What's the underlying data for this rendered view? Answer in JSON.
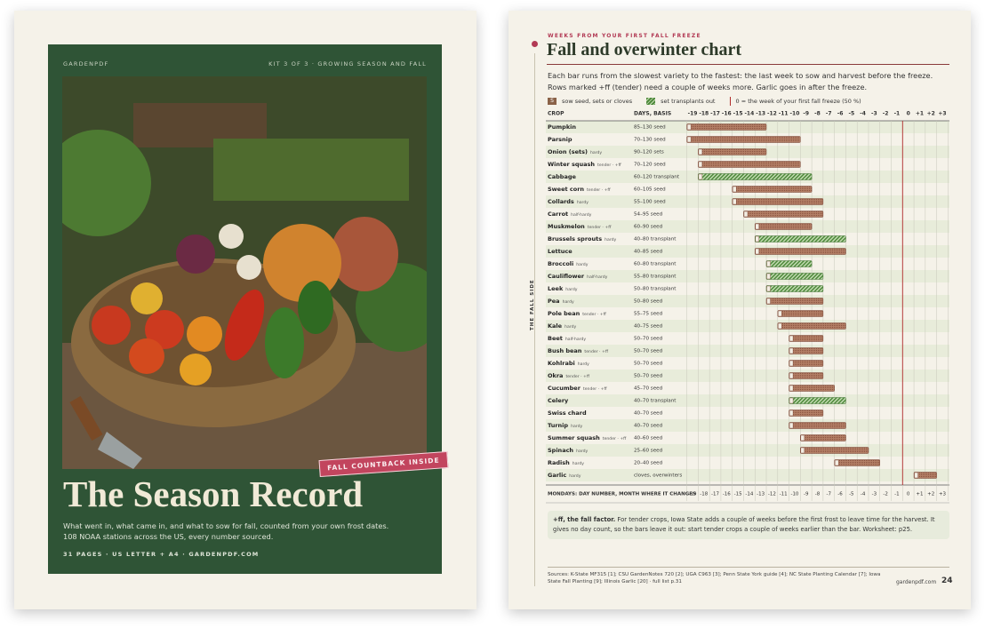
{
  "cover": {
    "brand": "GARDENPDF",
    "kit": "KIT 3 OF 3 · GROWING SEASON AND FALL",
    "badge": "FALL COUNTBACK INSIDE",
    "title": "The Season Record",
    "description": "What went in, what came in, and what to sow for fall, counted from your own frost dates. 108 NOAA stations across the US, every number sourced.",
    "footer": "31 PAGES · US LETTER + A4 · GARDENPDF.COM"
  },
  "page": {
    "kicker": "WEEKS FROM YOUR FIRST FALL FREEZE",
    "title": "Fall and overwinter chart",
    "intro": [
      "Each bar runs from the slowest variety to the fastest: the last week to sow and harvest before the freeze.",
      "Rows marked +ff (tender) need a couple of weeks more. Garlic goes in after the freeze."
    ],
    "legend": [
      {
        "symbol": "S",
        "label": "sow seed, sets or cloves"
      },
      {
        "label": "set transplants out"
      },
      {
        "label": "0 = the week of your first fall freeze (50 %)"
      }
    ],
    "side_label": "THE FALL SIDE",
    "columns": {
      "crop": "CROP",
      "days": "DAYS, BASIS"
    },
    "weeks": [
      -19,
      -18,
      -17,
      -16,
      -15,
      -14,
      -13,
      -12,
      -11,
      -10,
      -9,
      -8,
      -7,
      -6,
      -5,
      -4,
      -3,
      -2,
      -1,
      0,
      {
        "value": 1,
        "label": "+1"
      },
      {
        "value": 2,
        "label": "+2"
      },
      {
        "value": 3,
        "label": "+3"
      }
    ],
    "rows": [
      {
        "crop": "Pumpkin",
        "days": "85–130 seed",
        "bar": [
          -19,
          -13
        ],
        "style": "sow"
      },
      {
        "crop": "Parsnip",
        "days": "70–130 seed",
        "bar": [
          -19,
          -10
        ],
        "style": "sow"
      },
      {
        "crop": "Onion (sets)",
        "tag": "hardy",
        "days": "90–120 sets",
        "bar": [
          -18,
          -13
        ],
        "style": "sow"
      },
      {
        "crop": "Winter squash",
        "tag": "tender · +ff",
        "days": "70–120 seed",
        "bar": [
          -18,
          -10
        ],
        "style": "sow"
      },
      {
        "crop": "Cabbage",
        "days": "60–120 transplant",
        "bar": [
          -18,
          -9
        ],
        "style": "transplant"
      },
      {
        "crop": "Sweet corn",
        "tag": "tender · +ff",
        "days": "60–105 seed",
        "bar": [
          -15,
          -9
        ],
        "style": "sow"
      },
      {
        "crop": "Collards",
        "tag": "hardy",
        "days": "55–100 seed",
        "bar": [
          -15,
          -8
        ],
        "style": "sow"
      },
      {
        "crop": "Carrot",
        "tag": "half-hardy",
        "days": "54–95 seed",
        "bar": [
          -14,
          -8
        ],
        "style": "sow"
      },
      {
        "crop": "Muskmelon",
        "tag": "tender · +ff",
        "days": "60–90 seed",
        "bar": [
          -13,
          -9
        ],
        "style": "sow"
      },
      {
        "crop": "Brussels sprouts",
        "tag": "hardy",
        "days": "40–80 transplant",
        "bar": [
          -13,
          -6
        ],
        "style": "transplant"
      },
      {
        "crop": "Lettuce",
        "days": "40–85 seed",
        "bar": [
          -13,
          -6
        ],
        "style": "sow"
      },
      {
        "crop": "Broccoli",
        "tag": "hardy",
        "days": "60–80 transplant",
        "bar": [
          -12,
          -9
        ],
        "style": "transplant"
      },
      {
        "crop": "Cauliflower",
        "tag": "half-hardy",
        "days": "55–80 transplant",
        "bar": [
          -12,
          -8
        ],
        "style": "transplant"
      },
      {
        "crop": "Leek",
        "tag": "hardy",
        "days": "50–80 transplant",
        "bar": [
          -12,
          -8
        ],
        "style": "transplant"
      },
      {
        "crop": "Pea",
        "tag": "hardy",
        "days": "50–80 seed",
        "bar": [
          -12,
          -8
        ],
        "style": "sow"
      },
      {
        "crop": "Pole bean",
        "tag": "tender · +ff",
        "days": "55–75 seed",
        "bar": [
          -11,
          -8
        ],
        "style": "sow"
      },
      {
        "crop": "Kale",
        "tag": "hardy",
        "days": "40–75 seed",
        "bar": [
          -11,
          -6
        ],
        "style": "sow"
      },
      {
        "crop": "Beet",
        "tag": "half-hardy",
        "days": "50–70 seed",
        "bar": [
          -10,
          -8
        ],
        "style": "sow"
      },
      {
        "crop": "Bush bean",
        "tag": "tender · +ff",
        "days": "50–70 seed",
        "bar": [
          -10,
          -8
        ],
        "style": "sow"
      },
      {
        "crop": "Kohlrabi",
        "tag": "hardy",
        "days": "50–70 seed",
        "bar": [
          -10,
          -8
        ],
        "style": "sow"
      },
      {
        "crop": "Okra",
        "tag": "tender · +ff",
        "days": "50–70 seed",
        "bar": [
          -10,
          -8
        ],
        "style": "sow"
      },
      {
        "crop": "Cucumber",
        "tag": "tender · +ff",
        "days": "45–70 seed",
        "bar": [
          -10,
          -7
        ],
        "style": "sow"
      },
      {
        "crop": "Celery",
        "days": "40–70 transplant",
        "bar": [
          -10,
          -6
        ],
        "style": "transplant"
      },
      {
        "crop": "Swiss chard",
        "days": "40–70 seed",
        "bar": [
          -10,
          -8
        ],
        "style": "sow"
      },
      {
        "crop": "Turnip",
        "tag": "hardy",
        "days": "40–70 seed",
        "bar": [
          -10,
          -6
        ],
        "style": "sow"
      },
      {
        "crop": "Summer squash",
        "tag": "tender · +ff",
        "days": "40–60 seed",
        "bar": [
          -9,
          -6
        ],
        "style": "sow"
      },
      {
        "crop": "Spinach",
        "tag": "hardy",
        "days": "25–60 seed",
        "bar": [
          -9,
          -4
        ],
        "style": "sow"
      },
      {
        "crop": "Radish",
        "tag": "hardy",
        "days": "20–40 seed",
        "bar": [
          -6,
          -3
        ],
        "style": "sow"
      },
      {
        "crop": "Garlic",
        "tag": "hardy",
        "days": "cloves, overwinters",
        "bar": [
          1,
          2
        ],
        "style": "sow"
      }
    ],
    "footer_label": "MONDAYS: DAY NUMBER, MONTH WHERE IT CHANGES",
    "note": {
      "lead": "+ff, the fall factor.",
      "text": "For tender crops, Iowa State adds a couple of weeks before the first frost to leave time for the harvest. It gives no day count, so the bars leave it out: start tender crops a couple of weeks earlier than the bar. Worksheet: p25."
    },
    "sources": "Sources: K-State MF315 [1]; CSU GardenNotes 720 [2]; UGA C963 [3]; Penn State York guide [4]; NC State Planting Calendar [7]; Iowa State Fall Planting [9]; Illinois Garlic [20] · full list p.31",
    "site": "gardenpdf.com",
    "page_number": 24
  }
}
